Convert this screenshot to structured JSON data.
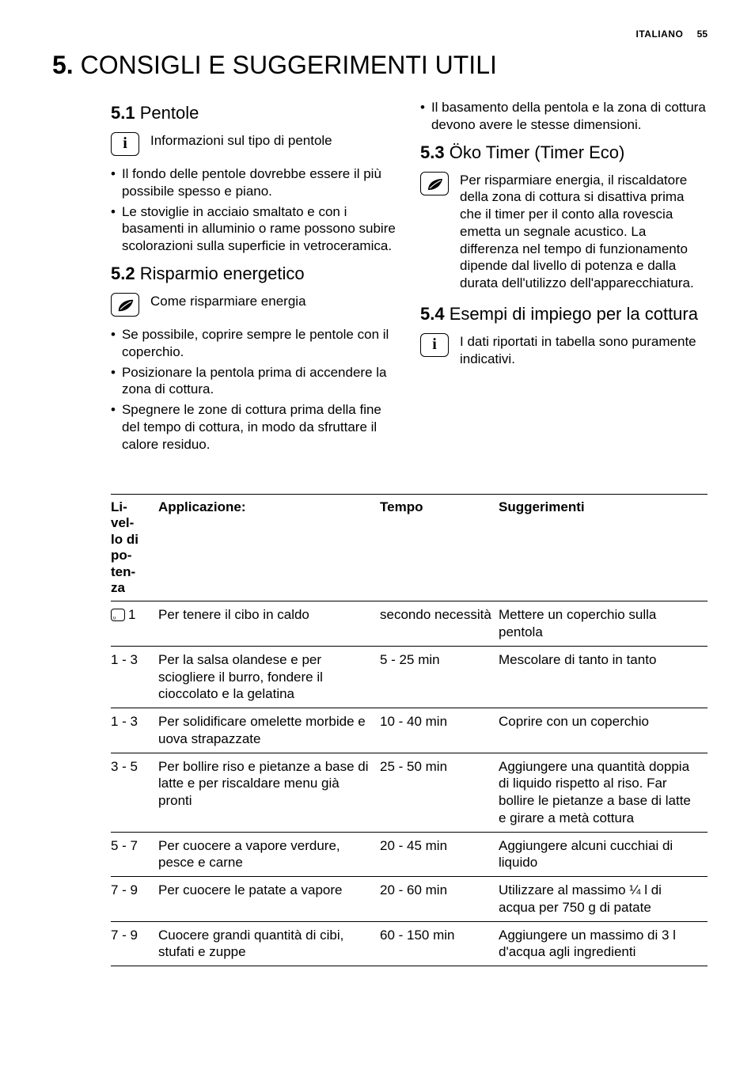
{
  "header": {
    "language": "ITALIANO",
    "page_number": "55"
  },
  "main_heading": {
    "number": "5.",
    "title": "CONSIGLI E SUGGERIMENTI UTILI"
  },
  "left": {
    "s1": {
      "num": "5.1",
      "title": "Pentole",
      "info": "Informazioni sul tipo di pentole",
      "b1": "Il fondo delle pentole dovrebbe essere il più possibile spesso e piano.",
      "b2": "Le stoviglie in acciaio smaltato e con i basamenti in alluminio o rame possono subire scolorazioni sulla superficie in vetroceramica."
    },
    "s2": {
      "num": "5.2",
      "title": "Risparmio energetico",
      "info": "Come risparmiare energia",
      "b1": "Se possibile, coprire sempre le pentole con il coperchio.",
      "b2": "Posizionare la pentola prima di accendere la zona di cottura.",
      "b3": "Spegnere le zone di cottura prima della fine del tempo di cottura, in modo da sfruttare il calore residuo."
    }
  },
  "right": {
    "top_bullet": "Il basamento della pentola e la zona di cottura devono avere le stesse dimensioni.",
    "s3": {
      "num": "5.3",
      "title": "Öko Timer (Timer Eco)",
      "text": "Per risparmiare energia, il riscaldatore della zona di cottura si disattiva prima che il timer per il conto alla rovescia emetta un segnale acustico. La differenza nel tempo di funzionamento dipende dal livello di potenza e dalla durata dell'utilizzo dell'apparecchiatura."
    },
    "s4": {
      "num": "5.4",
      "title": "Esempi di impiego per la cottura",
      "info": "I dati riportati in tabella sono puramente indicativi."
    }
  },
  "table": {
    "headers": {
      "level": "Livello di potenza",
      "app": "Applicazione:",
      "tempo": "Tempo",
      "sugg": "Suggerimenti"
    },
    "rows": [
      {
        "level": "1",
        "icon": true,
        "app": "Per tenere il cibo in caldo",
        "tempo": "secondo necessità",
        "sugg": "Mettere un coperchio sulla pentola"
      },
      {
        "level": "1 - 3",
        "app": "Per la salsa olandese e per sciogliere il burro, fondere il cioccolato e la gelatina",
        "tempo": "5 - 25 min",
        "sugg": "Mescolare di tanto in tanto"
      },
      {
        "level": "1 - 3",
        "app": "Per solidificare omelette morbide e uova strapazzate",
        "tempo": "10 - 40 min",
        "sugg": "Coprire con un coperchio"
      },
      {
        "level": "3 - 5",
        "app": "Per bollire riso e pietanze a base di latte e per riscaldare menu già pronti",
        "tempo": "25 - 50 min",
        "sugg": "Aggiungere una quantità doppia di liquido rispetto al riso. Far bollire le pietanze a base di latte e girare a metà cottura"
      },
      {
        "level": "5 - 7",
        "app": "Per cuocere a vapore verdure, pesce e carne",
        "tempo": "20 - 45 min",
        "sugg": "Aggiungere alcuni cucchiai di liquido"
      },
      {
        "level": "7 - 9",
        "app": "Per cuocere le patate a vapore",
        "tempo": "20 - 60 min",
        "sugg": "Utilizzare al massimo ¼ l di acqua per 750 g di patate"
      },
      {
        "level": "7 - 9",
        "app": "Cuocere grandi quantità di cibi, stufati e zuppe",
        "tempo": "60 - 150 min",
        "sugg": "Aggiungere un massimo di 3 l d'acqua agli ingredienti"
      }
    ]
  }
}
